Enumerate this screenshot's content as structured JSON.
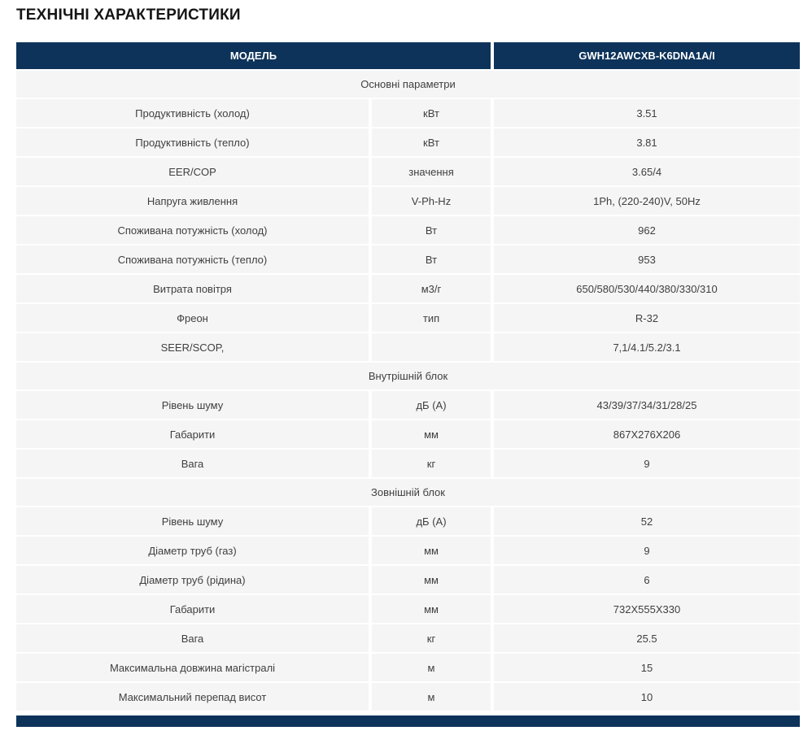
{
  "page": {
    "title": "ТЕХНІЧНІ ХАРАКТЕРИСТИКИ"
  },
  "colors": {
    "header_bg": "#0d335a",
    "row_bg": "#f5f5f5",
    "row_text": "#3f3f3f",
    "header_text": "#ffffff"
  },
  "table": {
    "header": {
      "model_label": "МОДЕЛЬ",
      "model_value": "GWH12AWCXB-K6DNA1A/I"
    },
    "sections": [
      {
        "title": "Основні параметри",
        "rows": [
          {
            "label": "Продуктивність (холод)",
            "unit": "кВт",
            "value": "3.51"
          },
          {
            "label": "Продуктивність (тепло)",
            "unit": "кВт",
            "value": "3.81"
          },
          {
            "label": "EER/COP",
            "unit": "значення",
            "value": "3.65/4"
          },
          {
            "label": "Напруга живлення",
            "unit": "V-Ph-Hz",
            "value": "1Ph, (220-240)V, 50Hz"
          },
          {
            "label": "Споживана потужність (холод)",
            "unit": "Вт",
            "value": "962"
          },
          {
            "label": "Споживана потужність (тепло)",
            "unit": "Вт",
            "value": "953"
          },
          {
            "label": "Витрата повітря",
            "unit": "м3/г",
            "value": "650/580/530/440/380/330/310"
          },
          {
            "label": "Фреон",
            "unit": "тип",
            "value": "R-32"
          },
          {
            "label": "SEER/SCOP,",
            "unit": "",
            "value": "7,1/4.1/5.2/3.1"
          }
        ]
      },
      {
        "title": "Внутрішній блок",
        "rows": [
          {
            "label": "Рівень шуму",
            "unit": "дБ (А)",
            "value": "43/39/37/34/31/28/25"
          },
          {
            "label": "Габарити",
            "unit": "мм",
            "value": "867X276X206"
          },
          {
            "label": "Вага",
            "unit": "кг",
            "value": "9"
          }
        ]
      },
      {
        "title": "Зовнішній блок",
        "rows": [
          {
            "label": "Рівень шуму",
            "unit": "дБ (А)",
            "value": "52"
          },
          {
            "label": "Діаметр труб (газ)",
            "unit": "мм",
            "value": "9"
          },
          {
            "label": "Діаметр труб (рідина)",
            "unit": "мм",
            "value": "6"
          },
          {
            "label": "Габарити",
            "unit": "мм",
            "value": "732X555X330"
          },
          {
            "label": "Вага",
            "unit": "кг",
            "value": "25.5"
          },
          {
            "label": "Максимальна довжина магістралі",
            "unit": "м",
            "value": "15"
          },
          {
            "label": "Максимальний перепад висот",
            "unit": "м",
            "value": "10"
          }
        ]
      }
    ]
  }
}
